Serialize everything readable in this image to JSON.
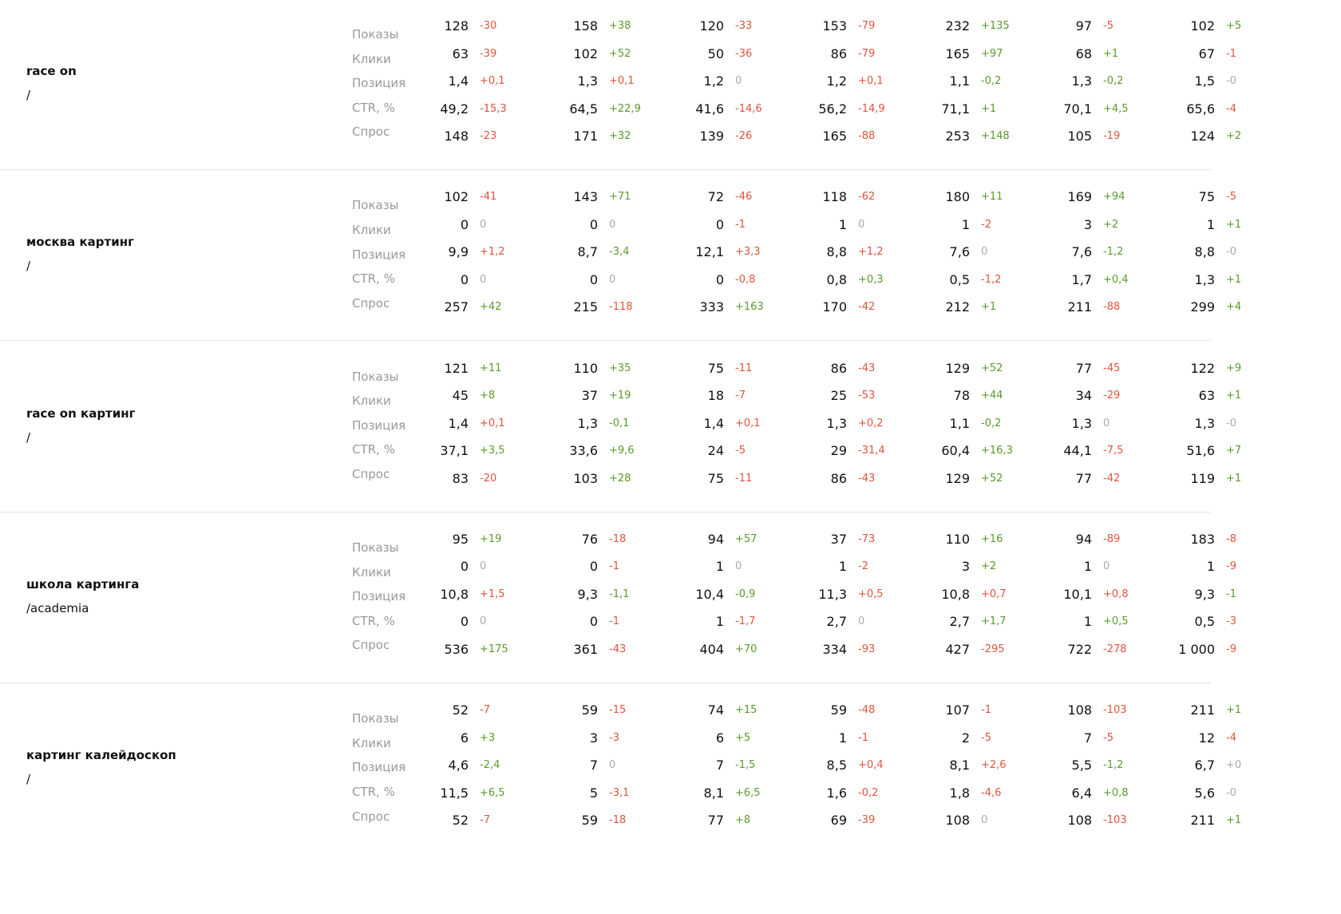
{
  "groups": [
    {
      "query": "race on",
      "path": "/",
      "rows": [
        {
          "label": "Показы",
          "cells": [
            [
              "128",
              "-30"
            ],
            [
              "158",
              "+38"
            ],
            [
              "120",
              "-33"
            ],
            [
              "153",
              "-79"
            ],
            [
              "232",
              "+135"
            ],
            [
              "97",
              "-5"
            ],
            [
              "102",
              "+5"
            ]
          ]
        },
        {
          "label": "Клики",
          "cells": [
            [
              "63",
              "-39"
            ],
            [
              "102",
              "+52"
            ],
            [
              "50",
              "-36"
            ],
            [
              "86",
              "-79"
            ],
            [
              "165",
              "+97"
            ],
            [
              "68",
              "+1"
            ],
            [
              "67",
              "-1"
            ]
          ]
        },
        {
          "label": "Позиция",
          "cells": [
            [
              "1,4",
              "+0,1"
            ],
            [
              "1,3",
              "+0,1"
            ],
            [
              "1,2",
              "0"
            ],
            [
              "1,2",
              "+0,1"
            ],
            [
              "1,1",
              "-0,2"
            ],
            [
              "1,3",
              "-0,2"
            ],
            [
              "1,5",
              "-0"
            ]
          ]
        },
        {
          "label": "CTR, %",
          "cells": [
            [
              "49,2",
              "-15,3"
            ],
            [
              "64,5",
              "+22,9"
            ],
            [
              "41,6",
              "-14,6"
            ],
            [
              "56,2",
              "-14,9"
            ],
            [
              "71,1",
              "+1"
            ],
            [
              "70,1",
              "+4,5"
            ],
            [
              "65,6",
              "-4"
            ]
          ]
        },
        {
          "label": "Спрос",
          "cells": [
            [
              "148",
              "-23"
            ],
            [
              "171",
              "+32"
            ],
            [
              "139",
              "-26"
            ],
            [
              "165",
              "-88"
            ],
            [
              "253",
              "+148"
            ],
            [
              "105",
              "-19"
            ],
            [
              "124",
              "+2"
            ]
          ]
        }
      ]
    },
    {
      "query": "москва картинг",
      "path": "/",
      "rows": [
        {
          "label": "Показы",
          "cells": [
            [
              "102",
              "-41"
            ],
            [
              "143",
              "+71"
            ],
            [
              "72",
              "-46"
            ],
            [
              "118",
              "-62"
            ],
            [
              "180",
              "+11"
            ],
            [
              "169",
              "+94"
            ],
            [
              "75",
              "-5"
            ]
          ]
        },
        {
          "label": "Клики",
          "cells": [
            [
              "0",
              "0"
            ],
            [
              "0",
              "0"
            ],
            [
              "0",
              "-1"
            ],
            [
              "1",
              "0"
            ],
            [
              "1",
              "-2"
            ],
            [
              "3",
              "+2"
            ],
            [
              "1",
              "+1"
            ]
          ]
        },
        {
          "label": "Позиция",
          "cells": [
            [
              "9,9",
              "+1,2"
            ],
            [
              "8,7",
              "-3,4"
            ],
            [
              "12,1",
              "+3,3"
            ],
            [
              "8,8",
              "+1,2"
            ],
            [
              "7,6",
              "0"
            ],
            [
              "7,6",
              "-1,2"
            ],
            [
              "8,8",
              "-0"
            ]
          ]
        },
        {
          "label": "CTR, %",
          "cells": [
            [
              "0",
              "0"
            ],
            [
              "0",
              "0"
            ],
            [
              "0",
              "-0,8"
            ],
            [
              "0,8",
              "+0,3"
            ],
            [
              "0,5",
              "-1,2"
            ],
            [
              "1,7",
              "+0,4"
            ],
            [
              "1,3",
              "+1"
            ]
          ]
        },
        {
          "label": "Спрос",
          "cells": [
            [
              "257",
              "+42"
            ],
            [
              "215",
              "-118"
            ],
            [
              "333",
              "+163"
            ],
            [
              "170",
              "-42"
            ],
            [
              "212",
              "+1"
            ],
            [
              "211",
              "-88"
            ],
            [
              "299",
              "+4"
            ]
          ]
        }
      ]
    },
    {
      "query": "race on картинг",
      "path": "/",
      "rows": [
        {
          "label": "Показы",
          "cells": [
            [
              "121",
              "+11"
            ],
            [
              "110",
              "+35"
            ],
            [
              "75",
              "-11"
            ],
            [
              "86",
              "-43"
            ],
            [
              "129",
              "+52"
            ],
            [
              "77",
              "-45"
            ],
            [
              "122",
              "+9"
            ]
          ]
        },
        {
          "label": "Клики",
          "cells": [
            [
              "45",
              "+8"
            ],
            [
              "37",
              "+19"
            ],
            [
              "18",
              "-7"
            ],
            [
              "25",
              "-53"
            ],
            [
              "78",
              "+44"
            ],
            [
              "34",
              "-29"
            ],
            [
              "63",
              "+1"
            ]
          ]
        },
        {
          "label": "Позиция",
          "cells": [
            [
              "1,4",
              "+0,1"
            ],
            [
              "1,3",
              "-0,1"
            ],
            [
              "1,4",
              "+0,1"
            ],
            [
              "1,3",
              "+0,2"
            ],
            [
              "1,1",
              "-0,2"
            ],
            [
              "1,3",
              "0"
            ],
            [
              "1,3",
              "-0"
            ]
          ]
        },
        {
          "label": "CTR, %",
          "cells": [
            [
              "37,1",
              "+3,5"
            ],
            [
              "33,6",
              "+9,6"
            ],
            [
              "24",
              "-5"
            ],
            [
              "29",
              "-31,4"
            ],
            [
              "60,4",
              "+16,3"
            ],
            [
              "44,1",
              "-7,5"
            ],
            [
              "51,6",
              "+7"
            ]
          ]
        },
        {
          "label": "Спрос",
          "cells": [
            [
              "83",
              "-20"
            ],
            [
              "103",
              "+28"
            ],
            [
              "75",
              "-11"
            ],
            [
              "86",
              "-43"
            ],
            [
              "129",
              "+52"
            ],
            [
              "77",
              "-42"
            ],
            [
              "119",
              "+1"
            ]
          ]
        }
      ]
    },
    {
      "query": "школа картинга",
      "path": "/academia",
      "rows": [
        {
          "label": "Показы",
          "cells": [
            [
              "95",
              "+19"
            ],
            [
              "76",
              "-18"
            ],
            [
              "94",
              "+57"
            ],
            [
              "37",
              "-73"
            ],
            [
              "110",
              "+16"
            ],
            [
              "94",
              "-89"
            ],
            [
              "183",
              "-8"
            ]
          ]
        },
        {
          "label": "Клики",
          "cells": [
            [
              "0",
              "0"
            ],
            [
              "0",
              "-1"
            ],
            [
              "1",
              "0"
            ],
            [
              "1",
              "-2"
            ],
            [
              "3",
              "+2"
            ],
            [
              "1",
              "0"
            ],
            [
              "1",
              "-9"
            ]
          ]
        },
        {
          "label": "Позиция",
          "cells": [
            [
              "10,8",
              "+1,5"
            ],
            [
              "9,3",
              "-1,1"
            ],
            [
              "10,4",
              "-0,9"
            ],
            [
              "11,3",
              "+0,5"
            ],
            [
              "10,8",
              "+0,7"
            ],
            [
              "10,1",
              "+0,8"
            ],
            [
              "9,3",
              "-1"
            ]
          ]
        },
        {
          "label": "CTR, %",
          "cells": [
            [
              "0",
              "0"
            ],
            [
              "0",
              "-1"
            ],
            [
              "1",
              "-1,7"
            ],
            [
              "2,7",
              "0"
            ],
            [
              "2,7",
              "+1,7"
            ],
            [
              "1",
              "+0,5"
            ],
            [
              "0,5",
              "-3"
            ]
          ]
        },
        {
          "label": "Спрос",
          "cells": [
            [
              "536",
              "+175"
            ],
            [
              "361",
              "-43"
            ],
            [
              "404",
              "+70"
            ],
            [
              "334",
              "-93"
            ],
            [
              "427",
              "-295"
            ],
            [
              "722",
              "-278"
            ],
            [
              "1 000",
              "-9"
            ]
          ]
        }
      ]
    },
    {
      "query": "картинг калейдоскоп",
      "path": "/",
      "rows": [
        {
          "label": "Показы",
          "cells": [
            [
              "52",
              "-7"
            ],
            [
              "59",
              "-15"
            ],
            [
              "74",
              "+15"
            ],
            [
              "59",
              "-48"
            ],
            [
              "107",
              "-1"
            ],
            [
              "108",
              "-103"
            ],
            [
              "211",
              "+1"
            ]
          ]
        },
        {
          "label": "Клики",
          "cells": [
            [
              "6",
              "+3"
            ],
            [
              "3",
              "-3"
            ],
            [
              "6",
              "+5"
            ],
            [
              "1",
              "-1"
            ],
            [
              "2",
              "-5"
            ],
            [
              "7",
              "-5"
            ],
            [
              "12",
              "-4"
            ]
          ]
        },
        {
          "label": "Позиция",
          "cells": [
            [
              "4,6",
              "-2,4"
            ],
            [
              "7",
              "0"
            ],
            [
              "7",
              "-1,5"
            ],
            [
              "8,5",
              "+0,4"
            ],
            [
              "8,1",
              "+2,6"
            ],
            [
              "5,5",
              "-1,2"
            ],
            [
              "6,7",
              "+0"
            ]
          ]
        },
        {
          "label": "CTR, %",
          "cells": [
            [
              "11,5",
              "+6,5"
            ],
            [
              "5",
              "-3,1"
            ],
            [
              "8,1",
              "+6,5"
            ],
            [
              "1,6",
              "-0,2"
            ],
            [
              "1,8",
              "-4,6"
            ],
            [
              "6,4",
              "+0,8"
            ],
            [
              "5,6",
              "-0"
            ]
          ]
        },
        {
          "label": "Спрос",
          "cells": [
            [
              "52",
              "-7"
            ],
            [
              "59",
              "-18"
            ],
            [
              "77",
              "+8"
            ],
            [
              "69",
              "-39"
            ],
            [
              "108",
              "0"
            ],
            [
              "108",
              "-103"
            ],
            [
              "211",
              "+1"
            ]
          ]
        }
      ]
    }
  ]
}
